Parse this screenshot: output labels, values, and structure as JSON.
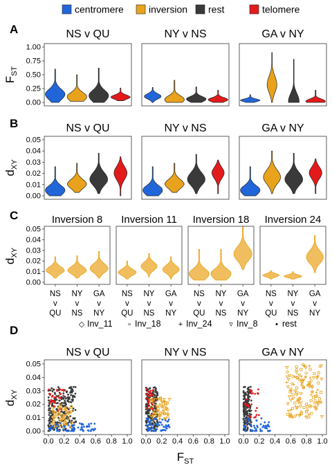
{
  "legend": {
    "items": [
      {
        "label": "centromere",
        "color": "#2166D8"
      },
      {
        "label": "inversion",
        "color": "#E8A21C"
      },
      {
        "label": "rest",
        "color": "#3A3A3A"
      },
      {
        "label": "telomere",
        "color": "#E21A1C"
      }
    ]
  },
  "colors": {
    "centromere": "#2166D8",
    "inversion": "#E8A21C",
    "rest": "#3A3A3A",
    "telomere": "#E21A1C",
    "inversion_light": "#F0BE5E"
  },
  "comparisons": [
    "NS v QU",
    "NY v NS",
    "GA v NY"
  ],
  "chart_data": [
    {
      "panel": "A",
      "type": "violin",
      "ylabel_main": "F",
      "ylabel_sub": "ST",
      "ylim": [
        0,
        1
      ],
      "yticks": [
        "0.00",
        "0.25",
        "0.50",
        "0.75",
        "1.00"
      ],
      "facets": [
        "NS v QU",
        "NY v NS",
        "GA v NY"
      ],
      "groups": [
        "centromere",
        "inversion",
        "rest",
        "telomere"
      ],
      "series": [
        {
          "facet": "NS v QU",
          "group": "centromere",
          "min": 0.0,
          "max": 0.6,
          "median": 0.15
        },
        {
          "facet": "NS v QU",
          "group": "inversion",
          "min": 0.02,
          "max": 0.5,
          "median": 0.1
        },
        {
          "facet": "NS v QU",
          "group": "rest",
          "min": 0.0,
          "max": 0.62,
          "median": 0.12
        },
        {
          "facet": "NS v QU",
          "group": "telomere",
          "min": 0.03,
          "max": 0.26,
          "median": 0.1
        },
        {
          "facet": "NY v NS",
          "group": "centromere",
          "min": 0.0,
          "max": 0.27,
          "median": 0.12
        },
        {
          "facet": "NY v NS",
          "group": "inversion",
          "min": 0.0,
          "max": 0.4,
          "median": 0.05
        },
        {
          "facet": "NY v NS",
          "group": "rest",
          "min": 0.0,
          "max": 0.28,
          "median": 0.06
        },
        {
          "facet": "NY v NS",
          "group": "telomere",
          "min": 0.0,
          "max": 0.22,
          "median": 0.05
        },
        {
          "facet": "GA v NY",
          "group": "centromere",
          "min": 0.0,
          "max": 0.14,
          "median": 0.04
        },
        {
          "facet": "GA v NY",
          "group": "inversion",
          "min": 0.0,
          "max": 0.9,
          "median": 0.35
        },
        {
          "facet": "GA v NY",
          "group": "rest",
          "min": 0.0,
          "max": 0.78,
          "median": 0.02
        },
        {
          "facet": "GA v NY",
          "group": "telomere",
          "min": 0.0,
          "max": 0.22,
          "median": 0.02
        }
      ]
    },
    {
      "panel": "B",
      "type": "violin",
      "ylabel_main": "d",
      "ylabel_sub": "XY",
      "ylim": [
        0,
        0.05
      ],
      "yticks": [
        "0.00",
        "0.01",
        "0.02",
        "0.03",
        "0.04",
        "0.05"
      ],
      "facets": [
        "NS v QU",
        "NY v NS",
        "GA v NY"
      ],
      "groups": [
        "centromere",
        "inversion",
        "rest",
        "telomere"
      ],
      "series": [
        {
          "facet": "NS v QU",
          "group": "centromere",
          "min": 0.0,
          "max": 0.026,
          "median": 0.005
        },
        {
          "facet": "NS v QU",
          "group": "inversion",
          "min": 0.003,
          "max": 0.029,
          "median": 0.011
        },
        {
          "facet": "NS v QU",
          "group": "rest",
          "min": 0.002,
          "max": 0.038,
          "median": 0.016
        },
        {
          "facet": "NS v QU",
          "group": "telomere",
          "min": 0.0,
          "max": 0.035,
          "median": 0.022
        },
        {
          "facet": "NY v NS",
          "group": "centromere",
          "min": 0.0,
          "max": 0.026,
          "median": 0.005
        },
        {
          "facet": "NY v NS",
          "group": "inversion",
          "min": 0.003,
          "max": 0.029,
          "median": 0.011
        },
        {
          "facet": "NY v NS",
          "group": "rest",
          "min": 0.002,
          "max": 0.037,
          "median": 0.016
        },
        {
          "facet": "NY v NS",
          "group": "telomere",
          "min": 0.002,
          "max": 0.032,
          "median": 0.022
        },
        {
          "facet": "GA v NY",
          "group": "centromere",
          "min": 0.0,
          "max": 0.026,
          "median": 0.005
        },
        {
          "facet": "GA v NY",
          "group": "inversion",
          "min": 0.002,
          "max": 0.04,
          "median": 0.018
        },
        {
          "facet": "GA v NY",
          "group": "rest",
          "min": 0.002,
          "max": 0.038,
          "median": 0.016
        },
        {
          "facet": "GA v NY",
          "group": "telomere",
          "min": 0.002,
          "max": 0.033,
          "median": 0.022
        }
      ]
    },
    {
      "panel": "C",
      "type": "violin",
      "ylabel_main": "d",
      "ylabel_sub": "XY",
      "ylim": [
        0,
        0.05
      ],
      "yticks": [
        "0.00",
        "0.01",
        "0.02",
        "0.03",
        "0.04",
        "0.05"
      ],
      "facets": [
        "Inversion 8",
        "Inversion 11",
        "Inversion 18",
        "Inversion 24"
      ],
      "xcategories": [
        [
          "NS",
          "v",
          "QU"
        ],
        [
          "NY",
          "v",
          "NS"
        ],
        [
          "GA",
          "v",
          "NY"
        ]
      ],
      "series": [
        {
          "facet": "Inversion 8",
          "category": "NS v QU",
          "min": 0.004,
          "max": 0.024,
          "median": 0.012
        },
        {
          "facet": "Inversion 8",
          "category": "NY v NS",
          "min": 0.004,
          "max": 0.025,
          "median": 0.012
        },
        {
          "facet": "Inversion 8",
          "category": "GA v NY",
          "min": 0.004,
          "max": 0.029,
          "median": 0.014
        },
        {
          "facet": "Inversion 11",
          "category": "NS v QU",
          "min": 0.003,
          "max": 0.02,
          "median": 0.01
        },
        {
          "facet": "Inversion 11",
          "category": "NY v NS",
          "min": 0.005,
          "max": 0.027,
          "median": 0.016
        },
        {
          "facet": "Inversion 11",
          "category": "GA v NY",
          "min": 0.003,
          "max": 0.024,
          "median": 0.013
        },
        {
          "facet": "Inversion 18",
          "category": "NS v QU",
          "min": 0.002,
          "max": 0.031,
          "median": 0.008
        },
        {
          "facet": "Inversion 18",
          "category": "NY v NS",
          "min": 0.002,
          "max": 0.031,
          "median": 0.008
        },
        {
          "facet": "Inversion 18",
          "category": "GA v NY",
          "min": 0.012,
          "max": 0.052,
          "median": 0.028
        },
        {
          "facet": "Inversion 24",
          "category": "NS v QU",
          "min": 0.003,
          "max": 0.011,
          "median": 0.007
        },
        {
          "facet": "Inversion 24",
          "category": "NY v NS",
          "min": 0.003,
          "max": 0.01,
          "median": 0.006
        },
        {
          "facet": "Inversion 24",
          "category": "GA v NY",
          "min": 0.009,
          "max": 0.044,
          "median": 0.025
        }
      ]
    },
    {
      "panel": "D",
      "type": "scatter",
      "ylabel_main": "d",
      "ylabel_sub": "XY",
      "xlabel_main": "F",
      "xlabel_sub": "ST",
      "xlim": [
        0,
        1
      ],
      "ylim": [
        0,
        0.05
      ],
      "xticks": [
        "0.0",
        "0.2",
        "0.4",
        "0.6",
        "0.8",
        "1.0"
      ],
      "yticks": [
        "0.00",
        "0.01",
        "0.02",
        "0.03",
        "0.04",
        "0.05"
      ],
      "facets": [
        "NS v QU",
        "NY v NS",
        "GA v NY"
      ],
      "shape_legend": [
        "Inv_11",
        "Inv_18",
        "Inv_24",
        "Inv_8",
        "rest"
      ],
      "clusters": [
        {
          "facet": "NS v QU",
          "group": "rest",
          "xrange": [
            0.0,
            0.35
          ],
          "yrange": [
            0.0,
            0.033
          ],
          "n": 240
        },
        {
          "facet": "NS v QU",
          "group": "telomere",
          "xrange": [
            0.0,
            0.2
          ],
          "yrange": [
            0.015,
            0.032
          ],
          "n": 30
        },
        {
          "facet": "NS v QU",
          "group": "inversion",
          "xrange": [
            0.05,
            0.3
          ],
          "yrange": [
            0.003,
            0.02
          ],
          "n": 60
        },
        {
          "facet": "NS v QU",
          "group": "centromere",
          "xrange": [
            0.0,
            0.6
          ],
          "yrange": [
            0.0,
            0.006
          ],
          "n": 70
        },
        {
          "facet": "NY v NS",
          "group": "rest",
          "xrange": [
            0.0,
            0.15
          ],
          "yrange": [
            0.0,
            0.033
          ],
          "n": 200
        },
        {
          "facet": "NY v NS",
          "group": "telomere",
          "xrange": [
            0.0,
            0.1
          ],
          "yrange": [
            0.016,
            0.032
          ],
          "n": 30
        },
        {
          "facet": "NY v NS",
          "group": "inversion",
          "xrange": [
            0.05,
            0.3
          ],
          "yrange": [
            0.008,
            0.025
          ],
          "n": 60
        },
        {
          "facet": "NY v NS",
          "group": "centromere",
          "xrange": [
            0.0,
            0.3
          ],
          "yrange": [
            0.0,
            0.01
          ],
          "n": 60
        },
        {
          "facet": "GA v NY",
          "group": "rest",
          "xrange": [
            0.0,
            0.1
          ],
          "yrange": [
            0.0,
            0.033
          ],
          "n": 160
        },
        {
          "facet": "GA v NY",
          "group": "telomere",
          "xrange": [
            0.0,
            0.2
          ],
          "yrange": [
            0.01,
            0.032
          ],
          "n": 25
        },
        {
          "facet": "GA v NY",
          "group": "inversion",
          "xrange": [
            0.55,
            1.0
          ],
          "yrange": [
            0.01,
            0.05
          ],
          "n": 130
        },
        {
          "facet": "GA v NY",
          "group": "centromere",
          "xrange": [
            0.0,
            0.35
          ],
          "yrange": [
            0.0,
            0.01
          ],
          "n": 50
        }
      ]
    }
  ],
  "panel_letters": [
    "A",
    "B",
    "C",
    "D"
  ]
}
